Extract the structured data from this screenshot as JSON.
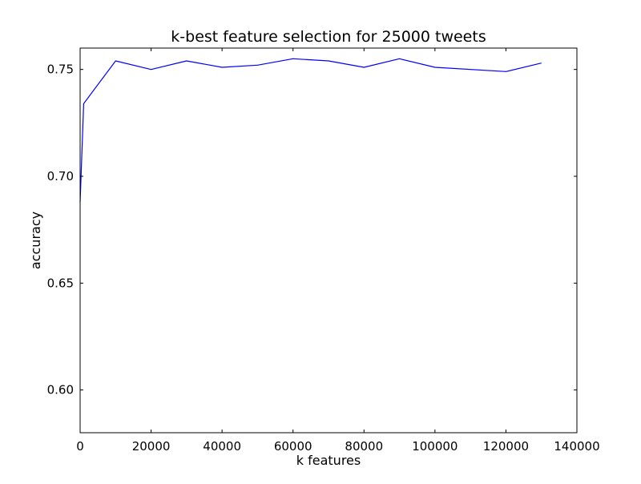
{
  "chart_data": {
    "type": "line",
    "title": "k-best feature selection for 25000 tweets",
    "xlabel": "k features",
    "ylabel": "accuracy",
    "xlim": [
      0,
      140000
    ],
    "ylim": [
      0.58,
      0.76
    ],
    "xticks": [
      0,
      20000,
      40000,
      60000,
      80000,
      100000,
      120000,
      140000
    ],
    "xtick_labels": [
      "0",
      "20000",
      "40000",
      "60000",
      "80000",
      "100000",
      "120000",
      "140000"
    ],
    "yticks": [
      0.6,
      0.65,
      0.7,
      0.75
    ],
    "ytick_labels": [
      "0.60",
      "0.65",
      "0.70",
      "0.75"
    ],
    "grid": false,
    "series": [
      {
        "color": "#0000ff",
        "x": [
          0,
          1000,
          10000,
          20000,
          30000,
          40000,
          50000,
          60000,
          70000,
          80000,
          90000,
          100000,
          120000,
          130000
        ],
        "y": [
          0.688,
          0.734,
          0.754,
          0.75,
          0.754,
          0.751,
          0.752,
          0.755,
          0.754,
          0.751,
          0.755,
          0.751,
          0.749,
          0.753
        ]
      }
    ]
  }
}
